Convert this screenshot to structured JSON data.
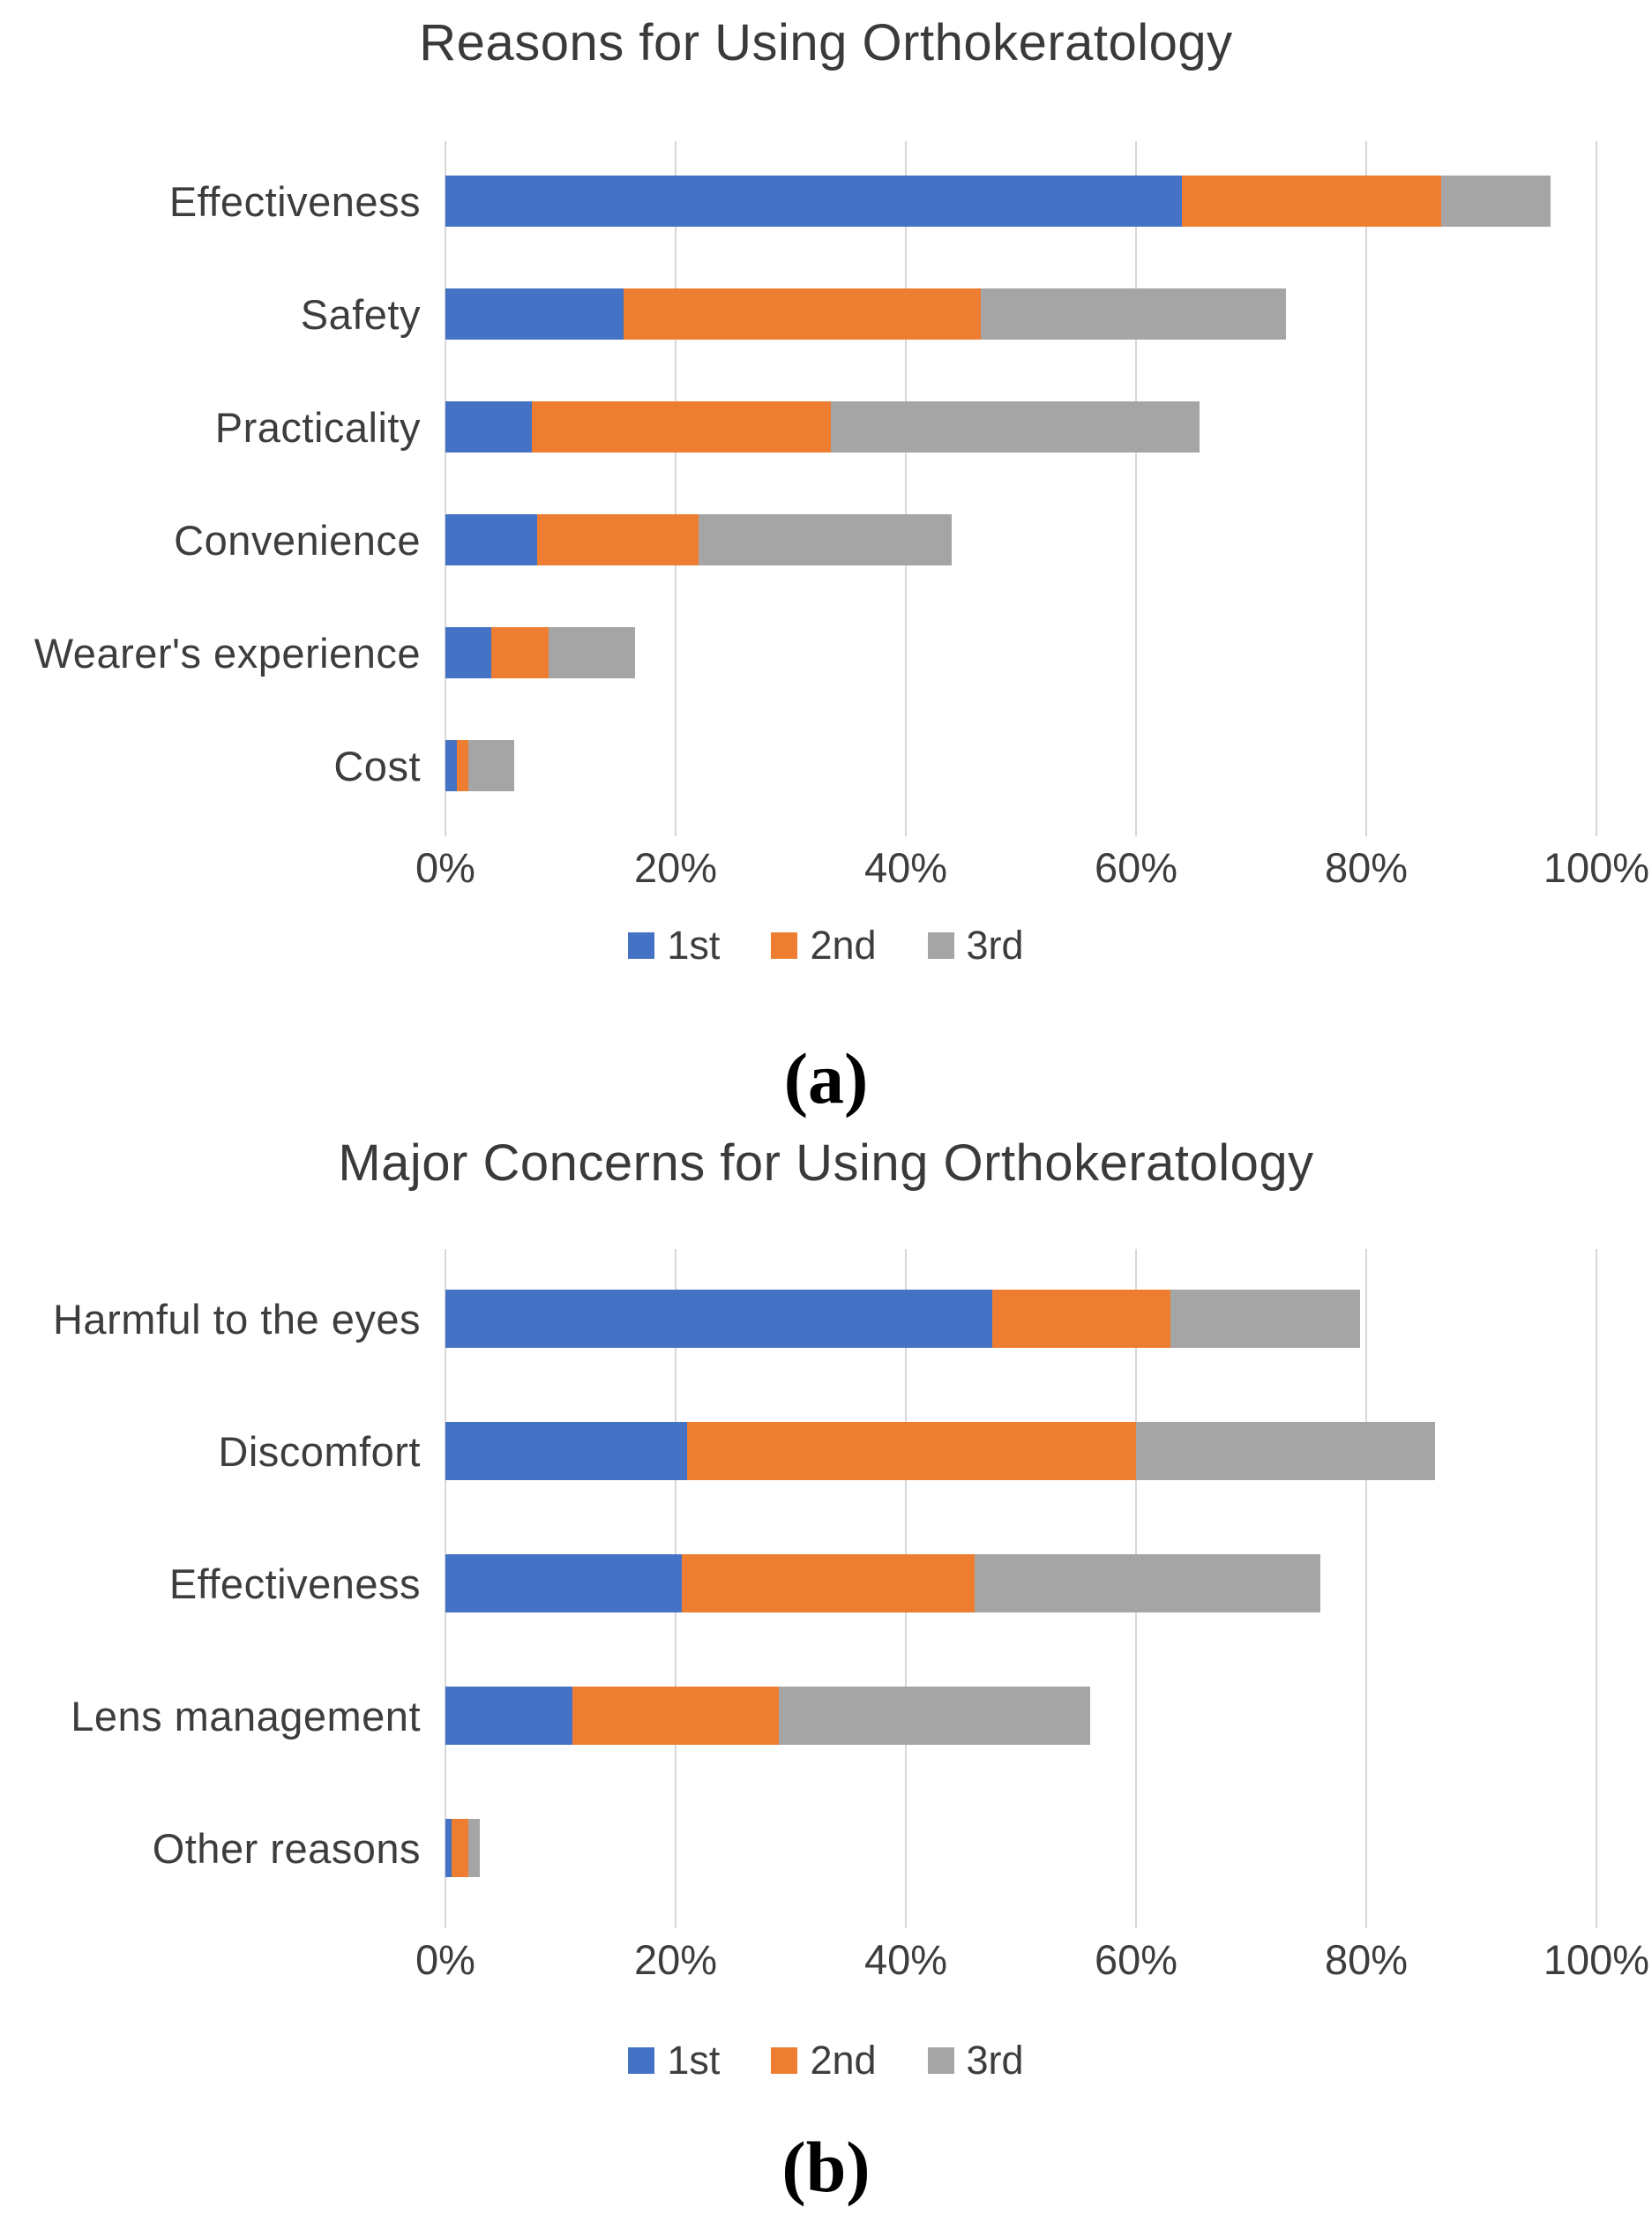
{
  "colors": {
    "series": {
      "1st": "#4472C4",
      "2nd": "#ED7D31",
      "3rd": "#A5A5A5"
    },
    "gridline": "#d7d7d7",
    "title_text": "#3a3a3a",
    "label_text": "#3d3d3d"
  },
  "chart_data": [
    {
      "type": "bar",
      "orientation": "horizontal",
      "stacked": true,
      "title": "Reasons for Using Orthokeratology",
      "panel_label": "(a)",
      "categories": [
        "Effectiveness",
        "Safety",
        "Practicality",
        "Convenience",
        "Wearer's experience",
        "Cost"
      ],
      "series": [
        {
          "name": "1st",
          "values": [
            64,
            15.5,
            7.5,
            8,
            4,
            1
          ]
        },
        {
          "name": "2nd",
          "values": [
            22.5,
            31,
            26,
            14,
            5,
            1
          ]
        },
        {
          "name": "3rd",
          "values": [
            9.5,
            26.5,
            32,
            22,
            7.5,
            4
          ]
        }
      ],
      "xlim": [
        0,
        100
      ],
      "x_ticks": [
        {
          "value": 0,
          "label": "0%"
        },
        {
          "value": 20,
          "label": "20%"
        },
        {
          "value": 40,
          "label": "40%"
        },
        {
          "value": 60,
          "label": "60%"
        },
        {
          "value": 80,
          "label": "80%"
        },
        {
          "value": 100,
          "label": "100%"
        }
      ],
      "grid": true,
      "legend": [
        "1st",
        "2nd",
        "3rd"
      ],
      "legend_position": "bottom"
    },
    {
      "type": "bar",
      "orientation": "horizontal",
      "stacked": true,
      "title": "Major Concerns for Using Orthokeratology",
      "panel_label": "(b)",
      "categories": [
        "Harmful to the eyes",
        "Discomfort",
        "Effectiveness",
        "Lens management",
        "Other reasons"
      ],
      "series": [
        {
          "name": "1st",
          "values": [
            47.5,
            21,
            20.5,
            11,
            0.5
          ]
        },
        {
          "name": "2nd",
          "values": [
            15.5,
            39,
            25.5,
            18,
            1.5
          ]
        },
        {
          "name": "3rd",
          "values": [
            16.5,
            26,
            30,
            27,
            1
          ]
        }
      ],
      "xlim": [
        0,
        100
      ],
      "x_ticks": [
        {
          "value": 0,
          "label": "0%"
        },
        {
          "value": 20,
          "label": "20%"
        },
        {
          "value": 40,
          "label": "40%"
        },
        {
          "value": 60,
          "label": "60%"
        },
        {
          "value": 80,
          "label": "80%"
        },
        {
          "value": 100,
          "label": "100%"
        }
      ],
      "grid": true,
      "legend": [
        "1st",
        "2nd",
        "3rd"
      ],
      "legend_position": "bottom"
    }
  ]
}
